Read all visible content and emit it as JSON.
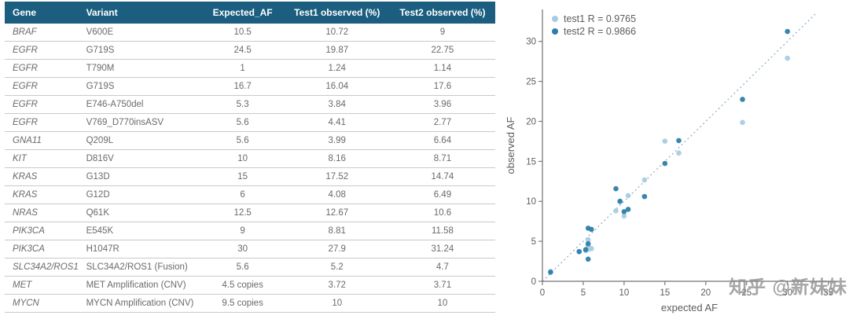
{
  "table": {
    "headers": [
      "Gene",
      "Variant",
      "Expected_AF",
      "Test1 observed (%)",
      "Test2 observed (%)"
    ],
    "rows": [
      [
        "BRAF",
        "V600E",
        "10.5",
        "10.72",
        "9"
      ],
      [
        "EGFR",
        "G719S",
        "24.5",
        "19.87",
        "22.75"
      ],
      [
        "EGFR",
        "T790M",
        "1",
        "1.24",
        "1.14"
      ],
      [
        "EGFR",
        "G719S",
        "16.7",
        "16.04",
        "17.6"
      ],
      [
        "EGFR",
        "E746-A750del",
        "5.3",
        "3.84",
        "3.96"
      ],
      [
        "EGFR",
        "V769_D770insASV",
        "5.6",
        "4.41",
        "2.77"
      ],
      [
        "GNA11",
        "Q209L",
        "5.6",
        "3.99",
        "6.64"
      ],
      [
        "KIT",
        "D816V",
        "10",
        "8.16",
        "8.71"
      ],
      [
        "KRAS",
        "G13D",
        "15",
        "17.52",
        "14.74"
      ],
      [
        "KRAS",
        "G12D",
        "6",
        "4.08",
        "6.49"
      ],
      [
        "NRAS",
        "Q61K",
        "12.5",
        "12.67",
        "10.6"
      ],
      [
        "PIK3CA",
        "E545K",
        "9",
        "8.81",
        "11.58"
      ],
      [
        "PIK3CA",
        "H1047R",
        "30",
        "27.9",
        "31.24"
      ],
      [
        "SLC34A2/ROS1",
        "SLC34A2/ROS1 (Fusion)",
        "5.6",
        "5.2",
        "4.7"
      ],
      [
        "MET",
        "MET Amplification (CNV)",
        "4.5 copies",
        "3.72",
        "3.71"
      ],
      [
        "MYCN",
        "MYCN Amplification (CNV)",
        "9.5 copies",
        "10",
        "10"
      ]
    ]
  },
  "chart": {
    "legend": [
      {
        "label": "test1 R = 0.9765",
        "color": "#a9cbe2"
      },
      {
        "label": "test2 R = 0.9866",
        "color": "#2c7fab"
      }
    ],
    "xlabel": "expected AF",
    "ylabel": "observed AF"
  },
  "chart_data": {
    "type": "scatter",
    "title": "",
    "xlabel": "expected AF",
    "ylabel": "observed AF",
    "xlim": [
      0,
      35
    ],
    "ylim": [
      0,
      35
    ],
    "x_ticks": [
      0,
      5,
      10,
      15,
      20,
      25,
      30,
      35
    ],
    "y_ticks": [
      0,
      5,
      10,
      15,
      20,
      25,
      30
    ],
    "identity_line": true,
    "legend_position": "top-left",
    "series": [
      {
        "name": "test1",
        "R": "0.9765",
        "color": "#a9cbe2",
        "points": [
          [
            10.5,
            10.72
          ],
          [
            24.5,
            19.87
          ],
          [
            1,
            1.24
          ],
          [
            16.7,
            16.04
          ],
          [
            5.3,
            3.84
          ],
          [
            5.6,
            4.41
          ],
          [
            5.6,
            3.99
          ],
          [
            10,
            8.16
          ],
          [
            15,
            17.52
          ],
          [
            6,
            4.08
          ],
          [
            12.5,
            12.67
          ],
          [
            9,
            8.81
          ],
          [
            30,
            27.9
          ],
          [
            5.6,
            5.2
          ],
          [
            4.5,
            3.72
          ],
          [
            9.5,
            10
          ]
        ]
      },
      {
        "name": "test2",
        "R": "0.9866",
        "color": "#2c7fab",
        "points": [
          [
            10.5,
            9
          ],
          [
            24.5,
            22.75
          ],
          [
            1,
            1.14
          ],
          [
            16.7,
            17.6
          ],
          [
            5.3,
            3.96
          ],
          [
            5.6,
            2.77
          ],
          [
            5.6,
            6.64
          ],
          [
            10,
            8.71
          ],
          [
            15,
            14.74
          ],
          [
            6,
            6.49
          ],
          [
            12.5,
            10.6
          ],
          [
            9,
            11.58
          ],
          [
            30,
            31.24
          ],
          [
            5.6,
            4.7
          ],
          [
            4.5,
            3.71
          ],
          [
            9.5,
            10
          ]
        ]
      }
    ]
  },
  "watermark": "知乎 @新妹妹",
  "colors": {
    "header_bg": "#1b5e7f",
    "header_text": "#ffffff",
    "row_text": "#6a6a6a",
    "border": "#c9c9c9",
    "axis": "#707070",
    "tick_text": "#5c5c5c",
    "identity_line": "#8fb3c9"
  }
}
